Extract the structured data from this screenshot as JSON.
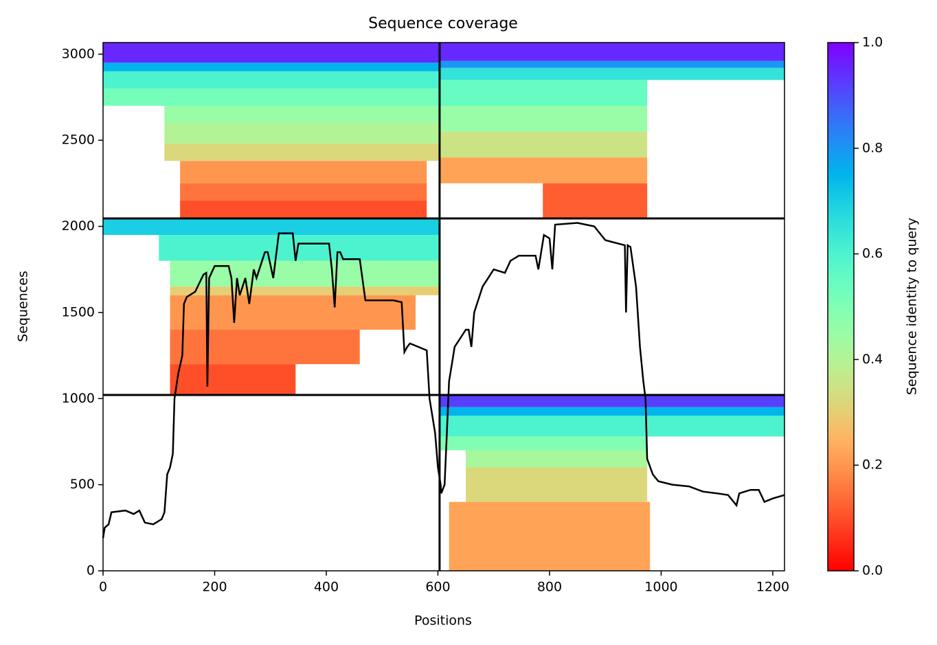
{
  "chart_data": {
    "type": "coverage",
    "title": "Sequence coverage",
    "x_label": "Positions",
    "y_label": "Sequences",
    "xlim": [
      0,
      1221
    ],
    "xticks": [
      0,
      200,
      400,
      600,
      800,
      1000,
      1200
    ],
    "ylim": [
      0,
      3067
    ],
    "yticks": [
      0,
      500,
      1000,
      1500,
      2000,
      2500,
      3000
    ],
    "colormap": "rainbow_r",
    "colorbar": {
      "label": "Sequence identity to query",
      "lim": [
        0,
        1
      ],
      "ticks": [
        {
          "value": 0,
          "label": "0.0"
        },
        0.2,
        0.4,
        0.6,
        0.8,
        {
          "value": 1,
          "label": "1.0"
        }
      ]
    },
    "blocks": [
      {
        "x": [
          0,
          603
        ],
        "y": [
          2950,
          3067
        ],
        "identity": 0.95
      },
      {
        "x": [
          0,
          603
        ],
        "y": [
          2900,
          2950
        ],
        "identity": 0.75
      },
      {
        "x": [
          0,
          603
        ],
        "y": [
          2800,
          2900
        ],
        "identity": 0.6
      },
      {
        "x": [
          0,
          603
        ],
        "y": [
          2700,
          2800
        ],
        "identity": 0.52
      },
      {
        "x": [
          110,
          603
        ],
        "y": [
          2600,
          2700
        ],
        "identity": 0.45
      },
      {
        "x": [
          110,
          603
        ],
        "y": [
          2480,
          2600
        ],
        "identity": 0.4
      },
      {
        "x": [
          110,
          603
        ],
        "y": [
          2380,
          2480
        ],
        "identity": 0.32
      },
      {
        "x": [
          138,
          580
        ],
        "y": [
          2250,
          2380
        ],
        "identity": 0.2
      },
      {
        "x": [
          138,
          580
        ],
        "y": [
          2150,
          2250
        ],
        "identity": 0.15
      },
      {
        "x": [
          138,
          580
        ],
        "y": [
          2046,
          2150
        ],
        "identity": 0.1
      },
      {
        "x": [
          603,
          1221
        ],
        "y": [
          2960,
          3067
        ],
        "identity": 0.95
      },
      {
        "x": [
          603,
          1221
        ],
        "y": [
          2920,
          2960
        ],
        "identity": 0.8
      },
      {
        "x": [
          603,
          1221
        ],
        "y": [
          2850,
          2920
        ],
        "identity": 0.65
      },
      {
        "x": [
          603,
          975
        ],
        "y": [
          2700,
          2850
        ],
        "identity": 0.55
      },
      {
        "x": [
          603,
          975
        ],
        "y": [
          2550,
          2700
        ],
        "identity": 0.45
      },
      {
        "x": [
          603,
          975
        ],
        "y": [
          2400,
          2550
        ],
        "identity": 0.35
      },
      {
        "x": [
          603,
          975
        ],
        "y": [
          2250,
          2400
        ],
        "identity": 0.22
      },
      {
        "x": [
          788,
          975
        ],
        "y": [
          2046,
          2250
        ],
        "identity": 0.12
      },
      {
        "x": [
          0,
          603
        ],
        "y": [
          1950,
          2046
        ],
        "identity": 0.7
      },
      {
        "x": [
          100,
          603
        ],
        "y": [
          1800,
          1950
        ],
        "identity": 0.6
      },
      {
        "x": [
          120,
          603
        ],
        "y": [
          1650,
          1800
        ],
        "identity": 0.45
      },
      {
        "x": [
          120,
          603
        ],
        "y": [
          1600,
          1650
        ],
        "identity": 0.3
      },
      {
        "x": [
          120,
          560
        ],
        "y": [
          1400,
          1600
        ],
        "identity": 0.2
      },
      {
        "x": [
          120,
          460
        ],
        "y": [
          1200,
          1400
        ],
        "identity": 0.15
      },
      {
        "x": [
          120,
          345
        ],
        "y": [
          1021,
          1200
        ],
        "identity": 0.1
      },
      {
        "x": [
          603,
          1221
        ],
        "y": [
          950,
          1021
        ],
        "identity": 0.92
      },
      {
        "x": [
          603,
          1221
        ],
        "y": [
          900,
          950
        ],
        "identity": 0.75
      },
      {
        "x": [
          603,
          1221
        ],
        "y": [
          780,
          900
        ],
        "identity": 0.6
      },
      {
        "x": [
          603,
          975
        ],
        "y": [
          700,
          780
        ],
        "identity": 0.5
      },
      {
        "x": [
          650,
          975
        ],
        "y": [
          600,
          700
        ],
        "identity": 0.42
      },
      {
        "x": [
          650,
          975
        ],
        "y": [
          400,
          600
        ],
        "identity": 0.32
      },
      {
        "x": [
          620,
          980
        ],
        "y": [
          0,
          400
        ],
        "identity": 0.22
      }
    ],
    "chain_breaks_x": [
      603
    ],
    "chain_breaks_y": [
      1021,
      2046
    ],
    "line": {
      "color": "#000000",
      "x": [
        0,
        3,
        10,
        15,
        40,
        55,
        65,
        75,
        90,
        105,
        110,
        115,
        120,
        125,
        128,
        135,
        142,
        145,
        150,
        165,
        180,
        185,
        187,
        190,
        200,
        225,
        230,
        235,
        240,
        245,
        250,
        255,
        262,
        270,
        275,
        290,
        295,
        305,
        315,
        340,
        345,
        350,
        405,
        410,
        415,
        420,
        425,
        430,
        460,
        470,
        520,
        535,
        540,
        545,
        550,
        565,
        580,
        585,
        595,
        600,
        605,
        606,
        612,
        616,
        620,
        625,
        630,
        640,
        650,
        655,
        660,
        665,
        680,
        690,
        700,
        720,
        730,
        745,
        775,
        780,
        790,
        800,
        805,
        810,
        850,
        880,
        900,
        935,
        937,
        940,
        945,
        955,
        962,
        968,
        972,
        975,
        985,
        995,
        1020,
        1050,
        1075,
        1100,
        1120,
        1135,
        1140,
        1160,
        1175,
        1185,
        1200,
        1221
      ],
      "y": [
        190,
        250,
        270,
        340,
        350,
        330,
        350,
        280,
        270,
        300,
        340,
        560,
        600,
        680,
        1000,
        1150,
        1250,
        1550,
        1590,
        1620,
        1720,
        1730,
        1070,
        1700,
        1770,
        1770,
        1700,
        1440,
        1700,
        1600,
        1650,
        1700,
        1550,
        1750,
        1700,
        1850,
        1850,
        1700,
        1960,
        1960,
        1800,
        1900,
        1900,
        1750,
        1530,
        1850,
        1850,
        1810,
        1810,
        1570,
        1570,
        1560,
        1270,
        1300,
        1320,
        1300,
        1280,
        1000,
        800,
        600,
        500,
        450,
        500,
        800,
        1100,
        1200,
        1300,
        1350,
        1400,
        1400,
        1300,
        1500,
        1650,
        1700,
        1750,
        1730,
        1800,
        1830,
        1830,
        1750,
        1950,
        1930,
        1750,
        2010,
        2020,
        2000,
        1920,
        1890,
        1500,
        1890,
        1880,
        1650,
        1300,
        1100,
        1000,
        650,
        560,
        520,
        500,
        490,
        460,
        450,
        440,
        380,
        450,
        470,
        470,
        400,
        420,
        440
      ]
    }
  }
}
